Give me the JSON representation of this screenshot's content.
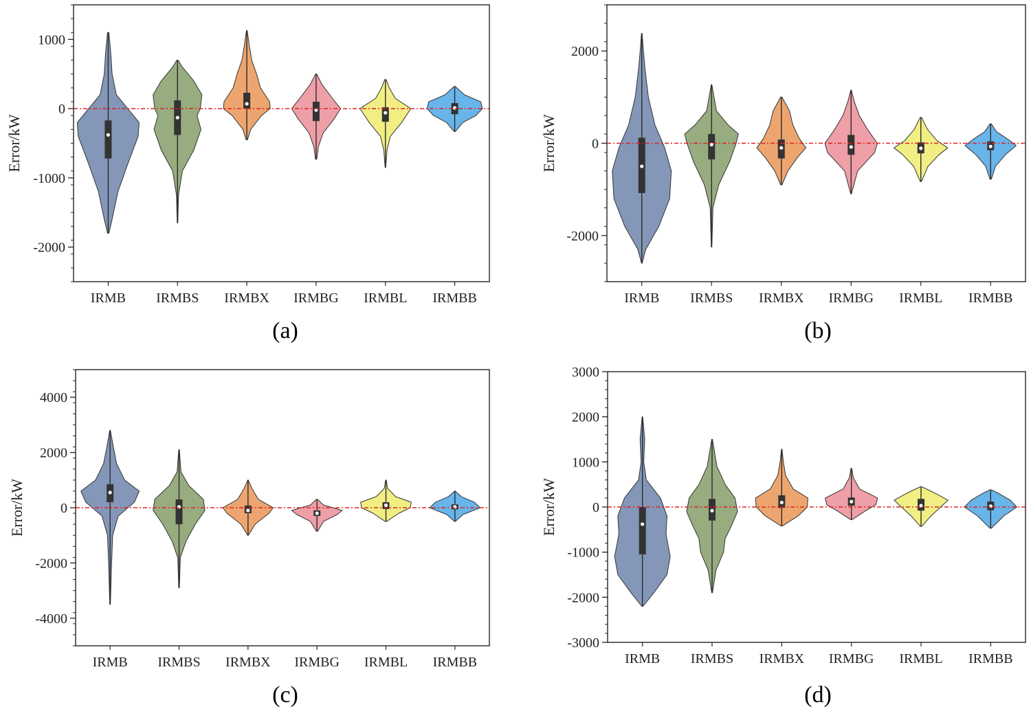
{
  "colors": {
    "IRMB": "#8497b8",
    "IRMBS": "#97ac7f",
    "IRMBX": "#eda56f",
    "IRMBG": "#ee9fa7",
    "IRMBL": "#f1ee84",
    "IRMBB": "#69b4e9",
    "zero_line": "#e02020"
  },
  "chart_data": [
    {
      "type": "violin",
      "caption": "(a)",
      "ylabel": "Error/kW",
      "ylim": [
        -2500,
        1500
      ],
      "yticks": [
        -2000,
        -1000,
        0,
        1000
      ],
      "categories": [
        "IRMB",
        "IRMBS",
        "IRMBX",
        "IRMBG",
        "IRMBL",
        "IRMBB"
      ],
      "category_labels": [
        "IRMB",
        "IRMBS",
        "IRMBX",
        "IRMBG",
        "IRMBL",
        "IRMBB"
      ],
      "violins": [
        {
          "min": -1800,
          "max": 1100,
          "q1": -720,
          "q3": -170,
          "median": -380,
          "shape": [
            [
              -1800,
              0.02
            ],
            [
              -1600,
              0.12
            ],
            [
              -1200,
              0.3
            ],
            [
              -800,
              0.6
            ],
            [
              -400,
              0.92
            ],
            [
              -200,
              0.95
            ],
            [
              0,
              0.6
            ],
            [
              200,
              0.25
            ],
            [
              500,
              0.12
            ],
            [
              800,
              0.08
            ],
            [
              1100,
              0.02
            ]
          ]
        },
        {
          "min": -1650,
          "max": 700,
          "q1": -380,
          "q3": 120,
          "median": -130,
          "shape": [
            [
              -1650,
              0.01
            ],
            [
              -1250,
              0.03
            ],
            [
              -900,
              0.15
            ],
            [
              -600,
              0.5
            ],
            [
              -300,
              0.72
            ],
            [
              -100,
              0.6
            ],
            [
              0,
              0.7
            ],
            [
              200,
              0.75
            ],
            [
              400,
              0.5
            ],
            [
              600,
              0.15
            ],
            [
              700,
              0.02
            ]
          ]
        },
        {
          "min": -450,
          "max": 1130,
          "q1": 0,
          "q3": 230,
          "median": 70,
          "shape": [
            [
              -450,
              0.02
            ],
            [
              -300,
              0.12
            ],
            [
              -100,
              0.45
            ],
            [
              0,
              0.72
            ],
            [
              100,
              0.7
            ],
            [
              300,
              0.42
            ],
            [
              500,
              0.3
            ],
            [
              700,
              0.15
            ],
            [
              900,
              0.08
            ],
            [
              1130,
              0.01
            ]
          ]
        },
        {
          "min": -730,
          "max": 500,
          "q1": -180,
          "q3": 100,
          "median": -20,
          "shape": [
            [
              -730,
              0.02
            ],
            [
              -550,
              0.07
            ],
            [
              -350,
              0.22
            ],
            [
              -150,
              0.55
            ],
            [
              0,
              0.75
            ],
            [
              150,
              0.5
            ],
            [
              350,
              0.18
            ],
            [
              500,
              0.02
            ]
          ]
        },
        {
          "min": -850,
          "max": 420,
          "q1": -190,
          "q3": 20,
          "median": -60,
          "shape": [
            [
              -850,
              0.01
            ],
            [
              -600,
              0.05
            ],
            [
              -400,
              0.15
            ],
            [
              -200,
              0.5
            ],
            [
              0,
              0.78
            ],
            [
              150,
              0.3
            ],
            [
              300,
              0.12
            ],
            [
              420,
              0.02
            ]
          ]
        },
        {
          "min": -330,
          "max": 320,
          "q1": -80,
          "q3": 80,
          "median": 10,
          "shape": [
            [
              -330,
              0.02
            ],
            [
              -200,
              0.25
            ],
            [
              -100,
              0.65
            ],
            [
              0,
              0.85
            ],
            [
              100,
              0.8
            ],
            [
              200,
              0.3
            ],
            [
              320,
              0.02
            ]
          ]
        }
      ]
    },
    {
      "type": "violin",
      "caption": "(b)",
      "ylabel": "Error/kW",
      "ylim": [
        -3000,
        3000
      ],
      "yticks": [
        -2000,
        0,
        2000
      ],
      "categories": [
        "IRMB",
        "IRMBS",
        "IRMBX",
        "IRMBG",
        "IRMBL",
        "IRMBB"
      ],
      "category_labels": [
        "IRMB",
        "IRMBS",
        "IRMBX",
        "IRMBG",
        "IRMBL",
        "IRMBB"
      ],
      "violins": [
        {
          "min": -2600,
          "max": 2380,
          "q1": -1080,
          "q3": 120,
          "median": -500,
          "shape": [
            [
              -2600,
              0.01
            ],
            [
              -2300,
              0.12
            ],
            [
              -1800,
              0.52
            ],
            [
              -1200,
              0.85
            ],
            [
              -600,
              0.9
            ],
            [
              -100,
              0.7
            ],
            [
              400,
              0.4
            ],
            [
              1000,
              0.2
            ],
            [
              1600,
              0.1
            ],
            [
              2000,
              0.05
            ],
            [
              2380,
              0.01
            ]
          ]
        },
        {
          "min": -2250,
          "max": 1270,
          "q1": -350,
          "q3": 200,
          "median": -30,
          "shape": [
            [
              -2250,
              0.01
            ],
            [
              -1400,
              0.04
            ],
            [
              -900,
              0.22
            ],
            [
              -400,
              0.55
            ],
            [
              0,
              0.75
            ],
            [
              200,
              0.82
            ],
            [
              400,
              0.5
            ],
            [
              700,
              0.15
            ],
            [
              1270,
              0.01
            ]
          ]
        },
        {
          "min": -900,
          "max": 1000,
          "q1": -330,
          "q3": 80,
          "median": -100,
          "shape": [
            [
              -900,
              0.02
            ],
            [
              -600,
              0.2
            ],
            [
              -300,
              0.5
            ],
            [
              -100,
              0.75
            ],
            [
              100,
              0.55
            ],
            [
              400,
              0.35
            ],
            [
              700,
              0.25
            ],
            [
              1000,
              0.02
            ]
          ]
        },
        {
          "min": -1100,
          "max": 1150,
          "q1": -250,
          "q3": 180,
          "median": -80,
          "shape": [
            [
              -1100,
              0.01
            ],
            [
              -600,
              0.2
            ],
            [
              -200,
              0.72
            ],
            [
              0,
              0.8
            ],
            [
              300,
              0.5
            ],
            [
              600,
              0.25
            ],
            [
              900,
              0.1
            ],
            [
              1150,
              0.01
            ]
          ]
        },
        {
          "min": -830,
          "max": 560,
          "q1": -220,
          "q3": 20,
          "median": -110,
          "shape": [
            [
              -830,
              0.02
            ],
            [
              -500,
              0.22
            ],
            [
              -250,
              0.55
            ],
            [
              -100,
              0.82
            ],
            [
              50,
              0.5
            ],
            [
              300,
              0.2
            ],
            [
              560,
              0.02
            ]
          ]
        },
        {
          "min": -780,
          "max": 420,
          "q1": -150,
          "q3": 40,
          "median": -70,
          "shape": [
            [
              -780,
              0.02
            ],
            [
              -500,
              0.15
            ],
            [
              -250,
              0.45
            ],
            [
              -50,
              0.78
            ],
            [
              100,
              0.5
            ],
            [
              250,
              0.18
            ],
            [
              420,
              0.02
            ]
          ]
        }
      ]
    },
    {
      "type": "violin",
      "caption": "(c)",
      "ylabel": "Error/kW",
      "ylim": [
        -5000,
        5000
      ],
      "yticks": [
        -4000,
        -2000,
        0,
        2000,
        4000
      ],
      "categories": [
        "IRMB",
        "IRMBS",
        "IRMBX",
        "IRMBG",
        "IRMBL",
        "IRMBB"
      ],
      "category_labels": [
        "IRMB",
        "IRMBS",
        "IRMBX",
        "IRMBG",
        "IRMBL",
        "IRMBB"
      ],
      "violins": [
        {
          "min": -3500,
          "max": 2800,
          "q1": 200,
          "q3": 850,
          "median": 550,
          "shape": [
            [
              -3500,
              0.01
            ],
            [
              -2200,
              0.04
            ],
            [
              -1000,
              0.08
            ],
            [
              -300,
              0.25
            ],
            [
              200,
              0.75
            ],
            [
              600,
              0.9
            ],
            [
              1000,
              0.45
            ],
            [
              1600,
              0.2
            ],
            [
              2200,
              0.1
            ],
            [
              2800,
              0.01
            ]
          ]
        },
        {
          "min": -2900,
          "max": 2100,
          "q1": -600,
          "q3": 300,
          "median": 30,
          "shape": [
            [
              -2900,
              0.01
            ],
            [
              -1800,
              0.04
            ],
            [
              -1200,
              0.22
            ],
            [
              -600,
              0.5
            ],
            [
              -100,
              0.8
            ],
            [
              300,
              0.75
            ],
            [
              800,
              0.3
            ],
            [
              1300,
              0.06
            ],
            [
              2100,
              0.01
            ]
          ]
        },
        {
          "min": -1000,
          "max": 1000,
          "q1": -200,
          "q3": 80,
          "median": -100,
          "shape": [
            [
              -1000,
              0.01
            ],
            [
              -600,
              0.22
            ],
            [
              -200,
              0.65
            ],
            [
              0,
              0.78
            ],
            [
              300,
              0.32
            ],
            [
              700,
              0.12
            ],
            [
              1000,
              0.01
            ]
          ]
        },
        {
          "min": -850,
          "max": 300,
          "q1": -300,
          "q3": -100,
          "median": -200,
          "shape": [
            [
              -850,
              0.02
            ],
            [
              -500,
              0.2
            ],
            [
              -250,
              0.62
            ],
            [
              -100,
              0.78
            ],
            [
              100,
              0.2
            ],
            [
              300,
              0.02
            ]
          ]
        },
        {
          "min": -500,
          "max": 1000,
          "q1": -50,
          "q3": 200,
          "median": 90,
          "shape": [
            [
              -500,
              0.02
            ],
            [
              -200,
              0.4
            ],
            [
              0,
              0.75
            ],
            [
              200,
              0.78
            ],
            [
              400,
              0.3
            ],
            [
              700,
              0.05
            ],
            [
              1000,
              0.01
            ]
          ]
        },
        {
          "min": -500,
          "max": 600,
          "q1": -60,
          "q3": 120,
          "median": 30,
          "shape": [
            [
              -500,
              0.01
            ],
            [
              -250,
              0.25
            ],
            [
              0,
              0.78
            ],
            [
              200,
              0.6
            ],
            [
              400,
              0.2
            ],
            [
              600,
              0.01
            ]
          ]
        }
      ]
    },
    {
      "type": "violin",
      "caption": "(d)",
      "ylabel": "Error/kW",
      "ylim": [
        -3000,
        3000
      ],
      "yticks": [
        -3000,
        -2000,
        -1000,
        0,
        1000,
        2000,
        3000
      ],
      "categories": [
        "IRMB",
        "IRMBS",
        "IRMBX",
        "IRMBG",
        "IRMBL",
        "IRMBB"
      ],
      "category_labels": [
        "IRMB",
        "IRMBS",
        "IRMBX",
        "IRMBG",
        "IRMBL",
        "IRMBB"
      ],
      "violins": [
        {
          "min": -2200,
          "max": 2000,
          "q1": -1050,
          "q3": 0,
          "median": -380,
          "shape": [
            [
              -2200,
              0.02
            ],
            [
              -1900,
              0.35
            ],
            [
              -1500,
              0.75
            ],
            [
              -1100,
              0.85
            ],
            [
              -600,
              0.72
            ],
            [
              -200,
              0.75
            ],
            [
              200,
              0.55
            ],
            [
              600,
              0.12
            ],
            [
              1000,
              0.04
            ],
            [
              1500,
              0.07
            ],
            [
              2000,
              0.01
            ]
          ]
        },
        {
          "min": -1900,
          "max": 1500,
          "q1": -300,
          "q3": 180,
          "median": -80,
          "shape": [
            [
              -1900,
              0.01
            ],
            [
              -1400,
              0.12
            ],
            [
              -1000,
              0.35
            ],
            [
              -700,
              0.4
            ],
            [
              -400,
              0.6
            ],
            [
              -100,
              0.78
            ],
            [
              200,
              0.7
            ],
            [
              500,
              0.4
            ],
            [
              900,
              0.15
            ],
            [
              1500,
              0.01
            ]
          ]
        },
        {
          "min": -420,
          "max": 1280,
          "q1": -20,
          "q3": 260,
          "median": 100,
          "shape": [
            [
              -420,
              0.02
            ],
            [
              -200,
              0.5
            ],
            [
              0,
              0.78
            ],
            [
              200,
              0.8
            ],
            [
              400,
              0.35
            ],
            [
              700,
              0.12
            ],
            [
              1000,
              0.05
            ],
            [
              1280,
              0.01
            ]
          ]
        },
        {
          "min": -280,
          "max": 860,
          "q1": 30,
          "q3": 210,
          "median": 120,
          "shape": [
            [
              -280,
              0.02
            ],
            [
              -100,
              0.4
            ],
            [
              50,
              0.75
            ],
            [
              200,
              0.8
            ],
            [
              400,
              0.25
            ],
            [
              650,
              0.06
            ],
            [
              860,
              0.01
            ]
          ]
        },
        {
          "min": -430,
          "max": 450,
          "q1": -80,
          "q3": 180,
          "median": 30,
          "shape": [
            [
              -430,
              0.02
            ],
            [
              -200,
              0.3
            ],
            [
              0,
              0.6
            ],
            [
              150,
              0.82
            ],
            [
              300,
              0.45
            ],
            [
              450,
              0.02
            ]
          ]
        },
        {
          "min": -470,
          "max": 380,
          "q1": -70,
          "q3": 120,
          "median": 20,
          "shape": [
            [
              -470,
              0.02
            ],
            [
              -200,
              0.4
            ],
            [
              0,
              0.8
            ],
            [
              150,
              0.6
            ],
            [
              300,
              0.25
            ],
            [
              380,
              0.02
            ]
          ]
        }
      ]
    }
  ]
}
